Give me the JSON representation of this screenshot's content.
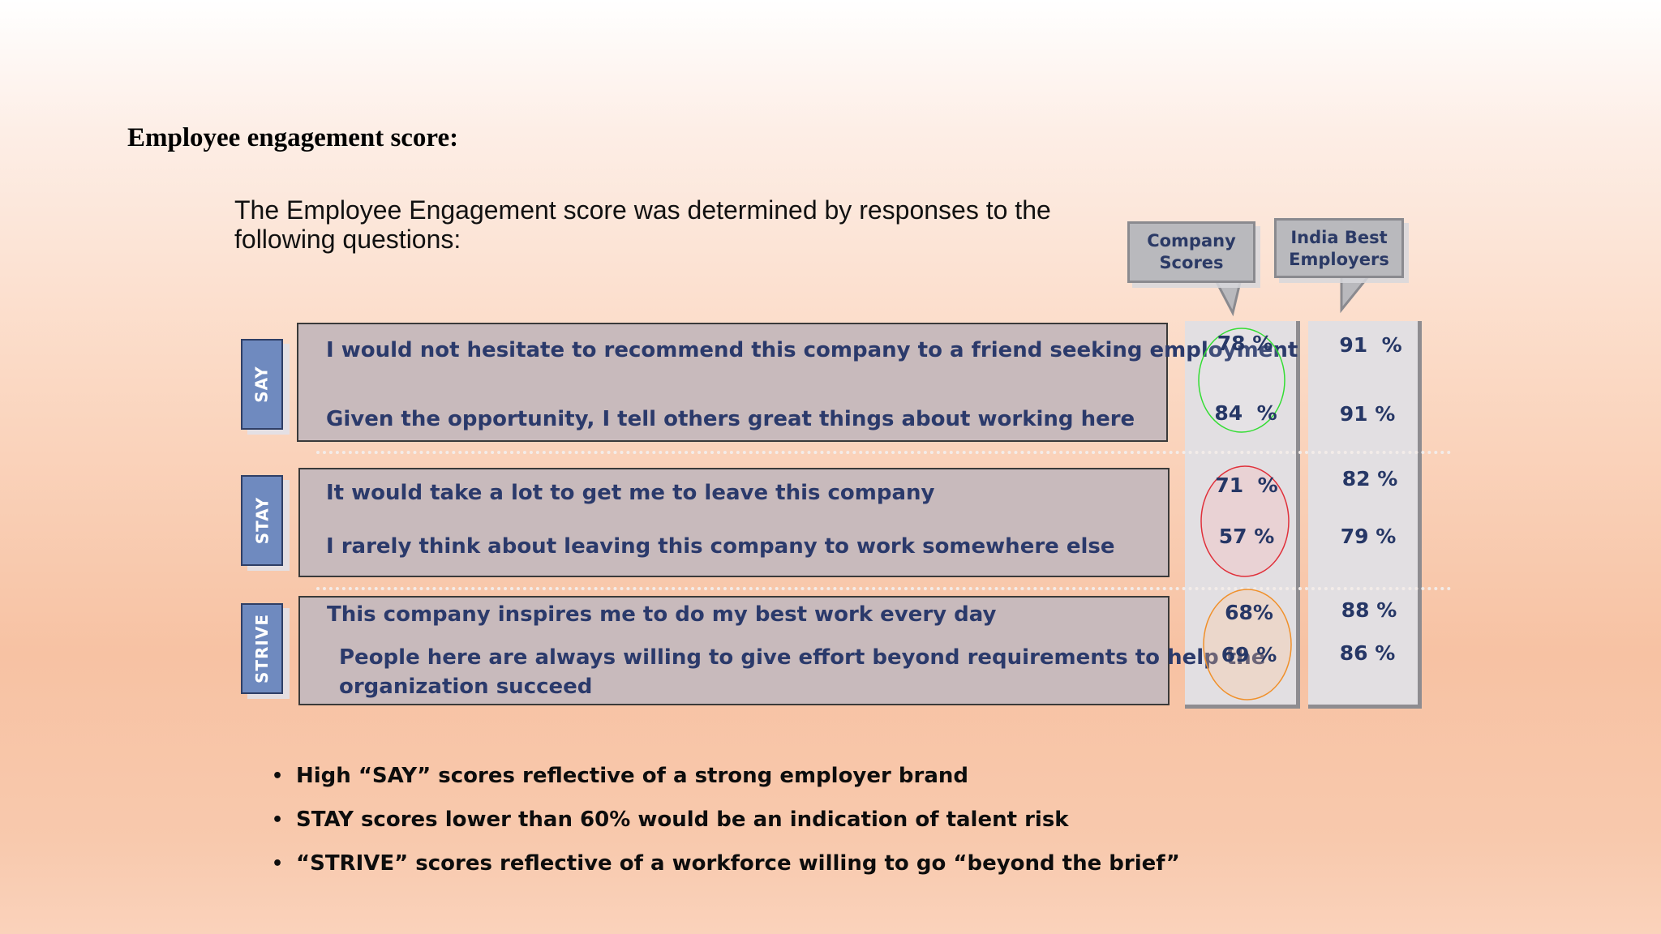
{
  "title": "Employee engagement score:",
  "intro": "The Employee Engagement score was determined by responses to the following questions:",
  "columns": {
    "company": "Company Scores",
    "india": "India Best Employers"
  },
  "groups": [
    {
      "tag": "SAY",
      "questions": [
        {
          "text": "I would not hesitate to recommend this company to a friend seeking employment",
          "company": "78 %",
          "india": "91  %"
        },
        {
          "text": "Given the opportunity, I tell others great things about working here",
          "company": "84  %",
          "india": "91 %"
        }
      ],
      "circle_color": "#33dd33"
    },
    {
      "tag": "STAY",
      "questions": [
        {
          "text": "It would take a lot to get me to leave this company",
          "company": "71  %",
          "india": "82 %"
        },
        {
          "text": "I rarely think about leaving this company to work somewhere else",
          "company": "57 %",
          "india": "79 %"
        }
      ],
      "circle_color": "#e0303a"
    },
    {
      "tag": "STRIVE",
      "questions": [
        {
          "text": "This company inspires me to do my best work every day",
          "company": "68%",
          "india": "88 %"
        },
        {
          "text_line1": "People here are always willing to give effort beyond requirements to help the",
          "text_line2": "organization succeed",
          "company": "69 %",
          "india": "86 %"
        }
      ],
      "circle_color": "#f0902a"
    }
  ],
  "bullets": [
    "High “SAY” scores reflective of a strong employer brand",
    "STAY scores lower than 60% would be an indication of talent risk",
    "“STRIVE” scores reflective of a workforce willing to go “beyond the brief”"
  ]
}
